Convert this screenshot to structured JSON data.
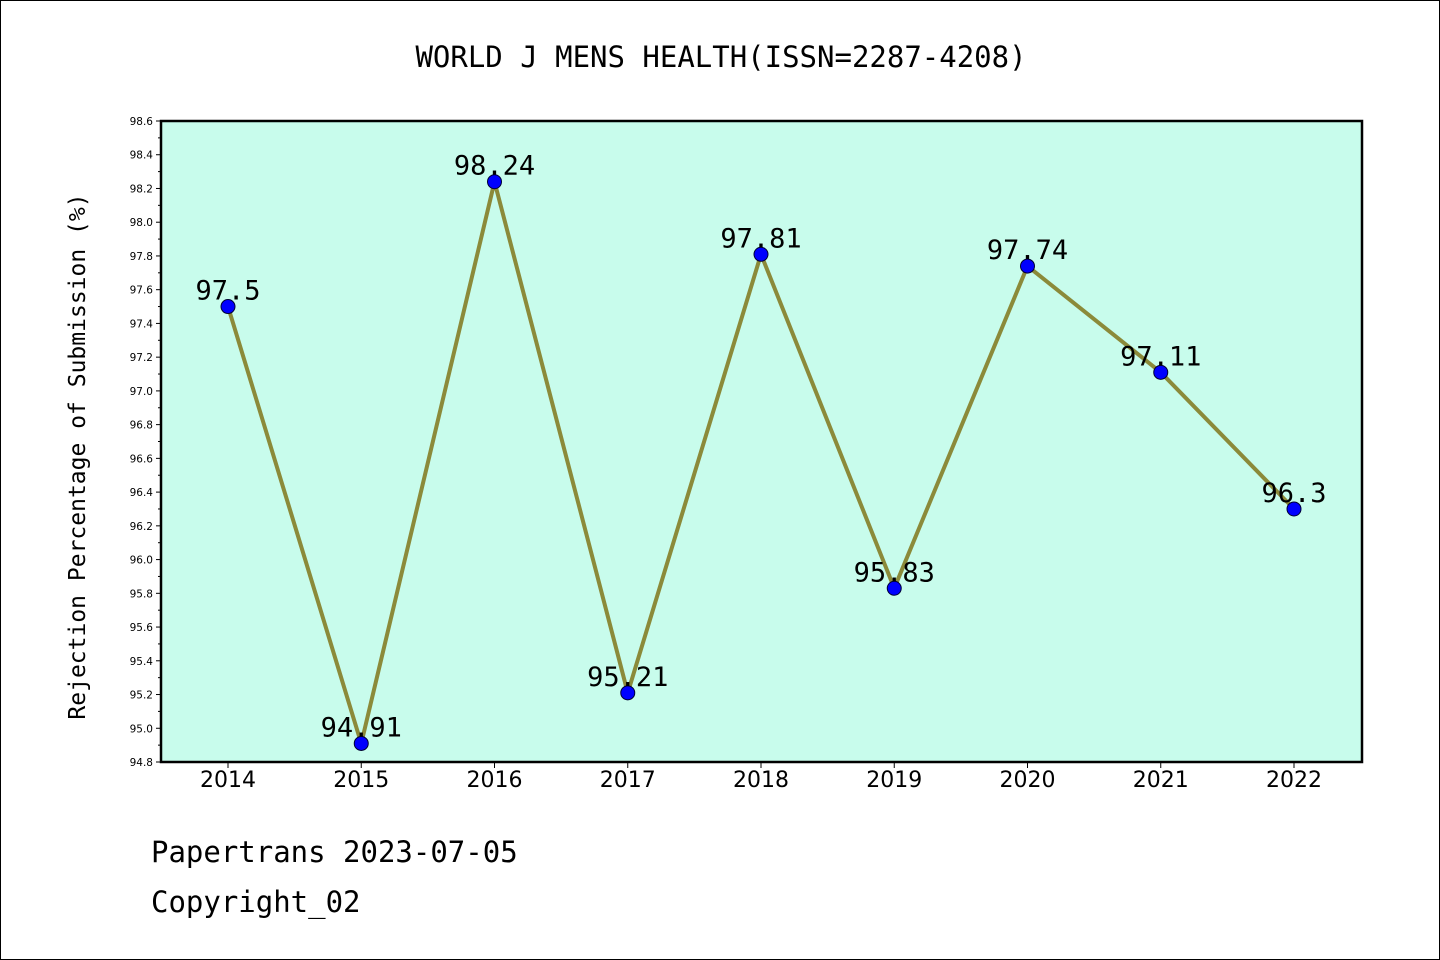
{
  "chart_data": {
    "type": "line",
    "title": "WORLD J MENS HEALTH(ISSN=2287-4208)",
    "xlabel": "",
    "ylabel": "Rejection Percentage of Submission (%)",
    "categories": [
      "2014",
      "2015",
      "2016",
      "2017",
      "2018",
      "2019",
      "2020",
      "2021",
      "2022"
    ],
    "series": [
      {
        "values": [
          97.5,
          94.91,
          98.24,
          95.21,
          97.81,
          95.83,
          97.74,
          97.11,
          96.3
        ],
        "labels": [
          "97.5",
          "94.91",
          "98.24",
          "95.21",
          "97.81",
          "95.83",
          "97.74",
          "97.11",
          "96.3"
        ]
      }
    ],
    "ylim": [
      94.8,
      98.6
    ],
    "yticks": [
      "94.8",
      "95.0",
      "95.2",
      "95.4",
      "95.6",
      "95.8",
      "96.0",
      "96.2",
      "96.4",
      "96.6",
      "96.8",
      "97.0",
      "97.2",
      "97.4",
      "97.6",
      "97.8",
      "98.0",
      "98.2",
      "98.4",
      "98.6"
    ],
    "grid": false,
    "legend": "none",
    "colors": {
      "plot_background": "#c8fcec",
      "line": "#8b8a3a",
      "marker": "#0000ff"
    }
  },
  "footer": {
    "line1": "Papertrans 2023-07-05",
    "line2": "Copyright_02"
  }
}
